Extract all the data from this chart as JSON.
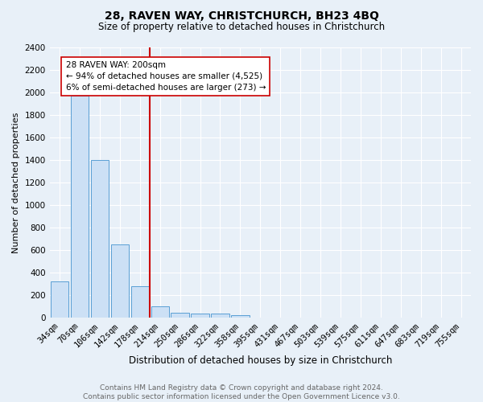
{
  "title1": "28, RAVEN WAY, CHRISTCHURCH, BH23 4BQ",
  "title2": "Size of property relative to detached houses in Christchurch",
  "xlabel": "Distribution of detached houses by size in Christchurch",
  "ylabel": "Number of detached properties",
  "bin_labels": [
    "34sqm",
    "70sqm",
    "106sqm",
    "142sqm",
    "178sqm",
    "214sqm",
    "250sqm",
    "286sqm",
    "322sqm",
    "358sqm",
    "395sqm",
    "431sqm",
    "467sqm",
    "503sqm",
    "539sqm",
    "575sqm",
    "611sqm",
    "647sqm",
    "683sqm",
    "719sqm",
    "755sqm"
  ],
  "bar_values": [
    325,
    1975,
    1400,
    650,
    280,
    100,
    47,
    40,
    35,
    22,
    0,
    0,
    0,
    0,
    0,
    0,
    0,
    0,
    0,
    0,
    0
  ],
  "bar_color": "#cce0f5",
  "bar_edge_color": "#5a9fd4",
  "vline_bin": 5,
  "vline_color": "#cc0000",
  "annotation_text": "28 RAVEN WAY: 200sqm\n← 94% of detached houses are smaller (4,525)\n6% of semi-detached houses are larger (273) →",
  "annotation_box_color": "#ffffff",
  "annotation_box_edge": "#cc0000",
  "ylim": [
    0,
    2400
  ],
  "yticks": [
    0,
    200,
    400,
    600,
    800,
    1000,
    1200,
    1400,
    1600,
    1800,
    2000,
    2200,
    2400
  ],
  "footnote": "Contains HM Land Registry data © Crown copyright and database right 2024.\nContains public sector information licensed under the Open Government Licence v3.0.",
  "bg_color": "#e8f0f8",
  "grid_color": "#ffffff",
  "title1_fontsize": 10,
  "title2_fontsize": 8.5,
  "ylabel_fontsize": 8,
  "xlabel_fontsize": 8.5,
  "tick_fontsize": 7.5,
  "footnote_fontsize": 6.5,
  "footnote_color": "#666666"
}
